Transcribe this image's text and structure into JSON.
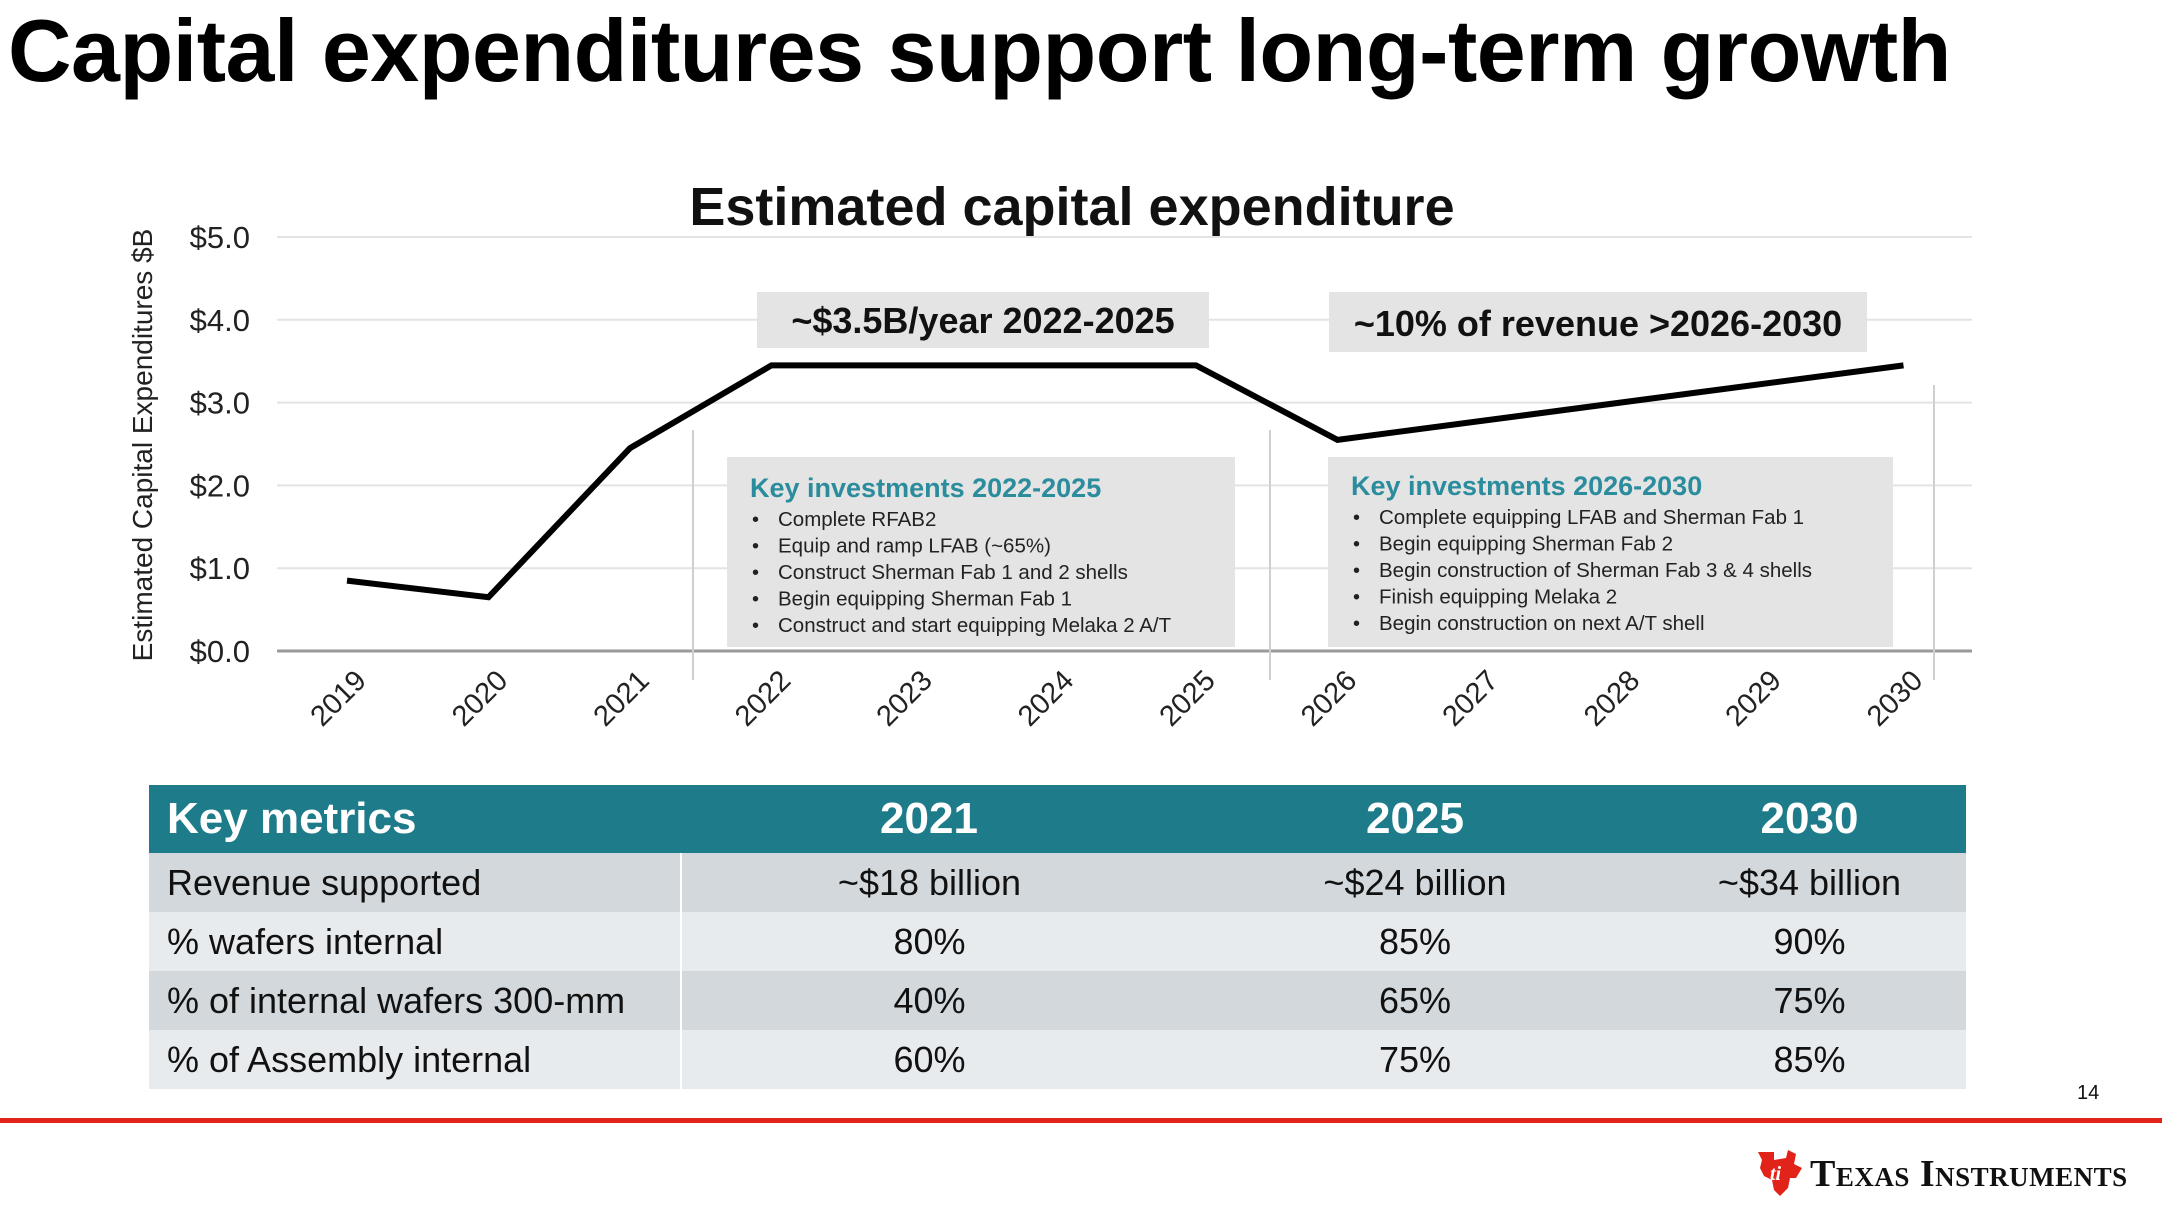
{
  "slide": {
    "title": "Capital expenditures support long-term growth",
    "page_number": "14",
    "brand_name": "Texas Instruments",
    "brand_color": "#e2231a",
    "accent_color": "#1e7b8a"
  },
  "chart_data": {
    "type": "line",
    "title": "Estimated capital expenditure",
    "ylabel": "Estimated Capital Expenditures $B",
    "xlabel": "",
    "x": [
      "2019",
      "2020",
      "2021",
      "2022",
      "2023",
      "2024",
      "2025",
      "2026",
      "2027",
      "2028",
      "2029",
      "2030"
    ],
    "yticks": [
      "$0.0",
      "$1.0",
      "$2.0",
      "$3.0",
      "$4.0",
      "$5.0"
    ],
    "ylim": [
      0,
      5
    ],
    "grid": true,
    "points": [
      {
        "x": 2019,
        "y": 0.85
      },
      {
        "x": 2020,
        "y": 0.65
      },
      {
        "x": 2021,
        "y": 2.45
      },
      {
        "x": 2022,
        "y": 3.45
      },
      {
        "x": 2025,
        "y": 3.45
      },
      {
        "x": 2026,
        "y": 2.55
      },
      {
        "x": 2030,
        "y": 3.45
      }
    ],
    "line_color": "#000000",
    "annotations": [
      {
        "id": "period-1",
        "text": "~$3.5B/year 2022-2025"
      },
      {
        "id": "period-2",
        "text": "~10% of revenue >2026-2030"
      }
    ],
    "investment_boxes": [
      {
        "id": "inv-1",
        "heading": "Key investments 2022-2025",
        "items": [
          "Complete RFAB2",
          "Equip and ramp LFAB (~65%)",
          "Construct Sherman Fab 1 and 2 shells",
          "Begin equipping Sherman Fab 1",
          "Construct and start equipping Melaka 2 A/T"
        ]
      },
      {
        "id": "inv-2",
        "heading": "Key investments 2026-2030",
        "items": [
          "Complete equipping LFAB and Sherman Fab 1",
          "Begin equipping Sherman Fab 2",
          "Begin construction of Sherman Fab 3 & 4 shells",
          "Finish equipping Melaka 2",
          "Begin construction on next A/T shell"
        ]
      }
    ]
  },
  "metrics_table": {
    "headers": [
      "Key metrics",
      "2021",
      "2025",
      "2030"
    ],
    "rows": [
      [
        "Revenue supported",
        "~$18 billion",
        "~$24 billion",
        "~$34 billion"
      ],
      [
        "% wafers internal",
        "80%",
        "85%",
        "90%"
      ],
      [
        "% of internal wafers 300-mm",
        "40%",
        "65%",
        "75%"
      ],
      [
        "% of Assembly internal",
        "60%",
        "75%",
        "85%"
      ]
    ]
  }
}
